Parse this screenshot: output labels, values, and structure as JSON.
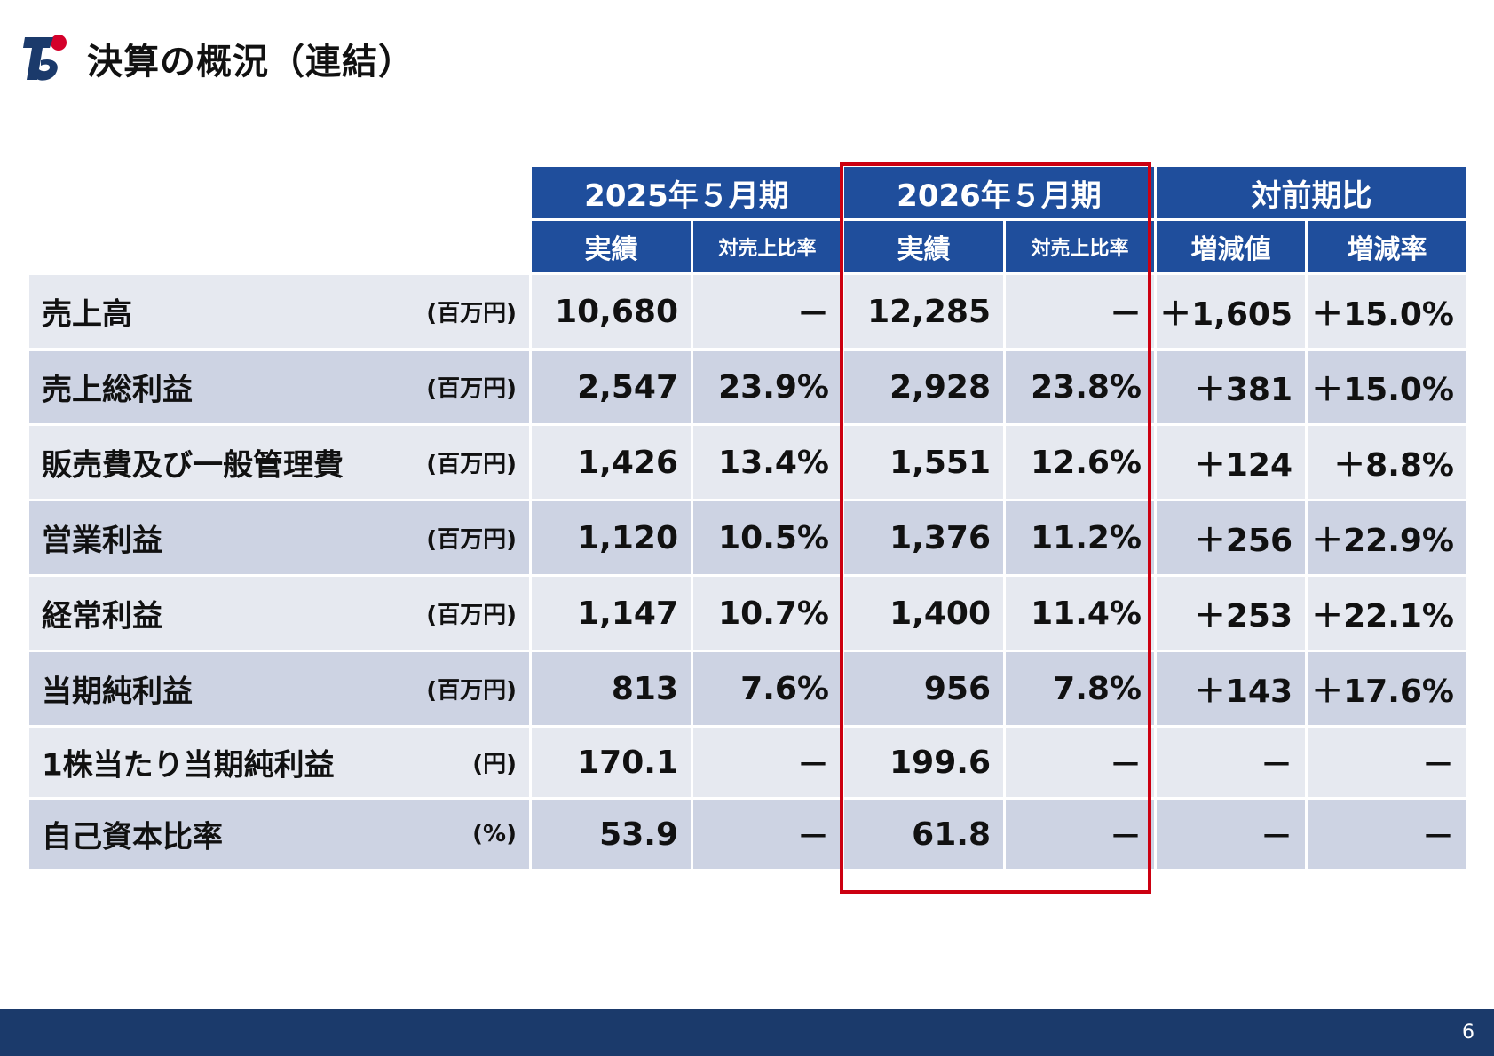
{
  "page": {
    "title": "決算の概況（連結）",
    "page_number": "6",
    "colors": {
      "header_blue": "#1f4e9c",
      "footer_navy": "#1b3a6b",
      "highlight_red": "#cc0011",
      "row_light": "#e6e9f0",
      "row_dark": "#cdd3e3"
    },
    "logo_icon": "company-t-logo-icon"
  },
  "table": {
    "group_headers": [
      "2025年５月期",
      "2026年５月期",
      "対前期比"
    ],
    "sub_headers": [
      "実績",
      "対売上比率",
      "実績",
      "対売上比率",
      "増減値",
      "増減率"
    ],
    "rows": [
      {
        "label": "売上高",
        "unit": "(百万円)",
        "values": [
          "10,680",
          "－",
          "12,285",
          "－",
          "＋1,605",
          "＋15.0%"
        ]
      },
      {
        "label": "売上総利益",
        "unit": "(百万円)",
        "values": [
          "2,547",
          "23.9%",
          "2,928",
          "23.8%",
          "＋381",
          "＋15.0%"
        ]
      },
      {
        "label": "販売費及び一般管理費",
        "unit": "(百万円)",
        "values": [
          "1,426",
          "13.4%",
          "1,551",
          "12.6%",
          "＋124",
          "＋8.8%"
        ]
      },
      {
        "label": "営業利益",
        "unit": "(百万円)",
        "values": [
          "1,120",
          "10.5%",
          "1,376",
          "11.2%",
          "＋256",
          "＋22.9%"
        ]
      },
      {
        "label": "経常利益",
        "unit": "(百万円)",
        "values": [
          "1,147",
          "10.7%",
          "1,400",
          "11.4%",
          "＋253",
          "＋22.1%"
        ]
      },
      {
        "label": "当期純利益",
        "unit": "(百万円)",
        "values": [
          "813",
          "7.6%",
          "956",
          "7.8%",
          "＋143",
          "＋17.6%"
        ]
      },
      {
        "label": "1株当たり当期純利益",
        "unit": "(円)",
        "values": [
          "170.1",
          "－",
          "199.6",
          "－",
          "－",
          "－"
        ]
      },
      {
        "label": "自己資本比率",
        "unit": "(%)",
        "values": [
          "53.9",
          "－",
          "61.8",
          "－",
          "－",
          "－"
        ]
      }
    ]
  }
}
